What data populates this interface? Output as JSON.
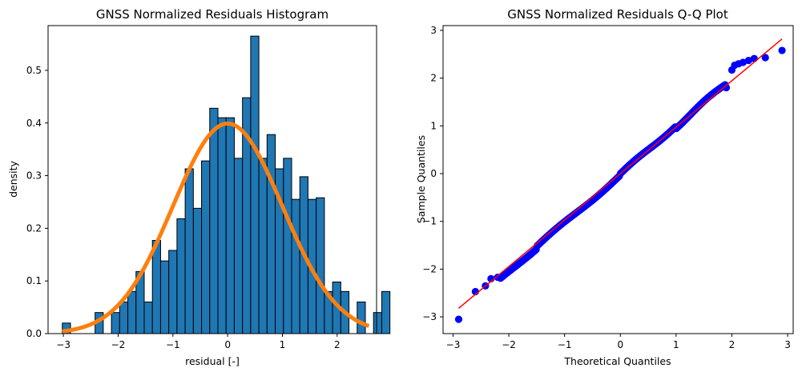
{
  "chart_data": [
    {
      "type": "histogram",
      "title": "GNSS Normalized Residuals Histogram",
      "xlabel": "residual [-]",
      "ylabel": "density",
      "xlim": [
        -3.28,
        2.72
      ],
      "ylim": [
        0,
        0.585
      ],
      "xticks": [
        -3,
        -2,
        -1,
        0,
        1,
        2
      ],
      "yticks": [
        0.0,
        0.1,
        0.2,
        0.3,
        0.4,
        0.5
      ],
      "ytick_labels": [
        "0.0",
        "0.1",
        "0.2",
        "0.3",
        "0.4",
        "0.5"
      ],
      "bin_start": -3.02,
      "bin_width": 0.1496,
      "densities": [
        0.02,
        0,
        0,
        0,
        0.04,
        0,
        0.04,
        0.06,
        0.08,
        0.118,
        0.06,
        0.177,
        0.138,
        0.158,
        0.218,
        0.313,
        0.238,
        0.328,
        0.428,
        0.41,
        0.41,
        0.333,
        0.448,
        0.565,
        0.333,
        0.378,
        0.313,
        0.333,
        0.255,
        0.298,
        0.255,
        0.258,
        0.08,
        0.098,
        0.08,
        0,
        0.06,
        0,
        0.04,
        0.08
      ],
      "bar_color": "#1f77b4",
      "curve": {
        "name": "standard normal pdf",
        "mean": 0,
        "std": 1,
        "x_range": [
          -3.02,
          2.58
        ],
        "color": "#ff7f0e"
      }
    },
    {
      "type": "scatter",
      "title": "GNSS Normalized Residuals Q-Q Plot",
      "xlabel": "Theoretical Quantiles",
      "ylabel": "Sample Quantiles",
      "xlim": [
        -3.18,
        3.1
      ],
      "ylim": [
        -3.35,
        3.1
      ],
      "xticks": [
        -3,
        -2,
        -1,
        0,
        1,
        2,
        3
      ],
      "yticks": [
        -3,
        -2,
        -1,
        0,
        1,
        2,
        3
      ],
      "xtick_labels": [
        "−3",
        "−2",
        "−1",
        "0",
        "1",
        "2",
        "3"
      ],
      "ytick_labels": [
        "−3",
        "−2",
        "−1",
        "0",
        "1",
        "2",
        "3"
      ],
      "outlier_points": [
        [
          -2.9,
          -3.05
        ],
        [
          -2.6,
          -2.47
        ],
        [
          -2.42,
          -2.35
        ],
        [
          -2.32,
          -2.2
        ],
        [
          -2.2,
          -2.17
        ],
        [
          2.0,
          2.17
        ],
        [
          2.05,
          2.27
        ],
        [
          2.12,
          2.3
        ],
        [
          2.2,
          2.33
        ],
        [
          2.3,
          2.37
        ],
        [
          2.4,
          2.41
        ],
        [
          2.6,
          2.43
        ],
        [
          2.9,
          2.58
        ]
      ],
      "points_color": "#0000ff",
      "reference_line": {
        "x": [
          -2.9,
          2.9
        ],
        "y": [
          -2.82,
          2.82
        ],
        "color": "#ff0000"
      }
    }
  ]
}
